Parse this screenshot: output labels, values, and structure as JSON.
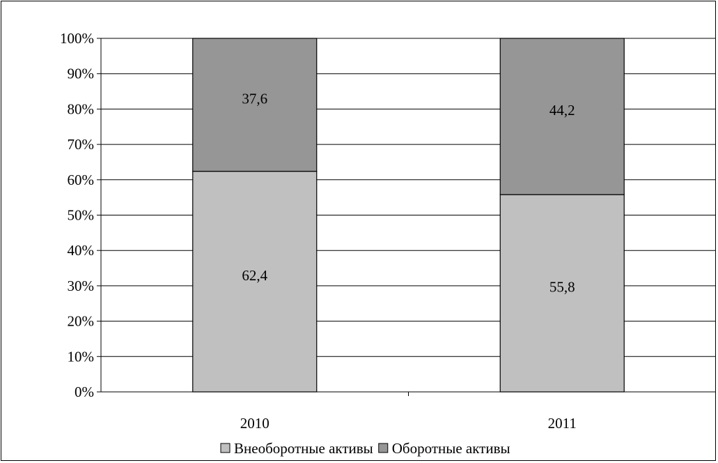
{
  "chart_data": {
    "type": "bar",
    "stacked": true,
    "percent": true,
    "categories": [
      "2010",
      "2011"
    ],
    "series": [
      {
        "name": "Внеоборотные активы",
        "values": [
          62.4,
          55.8
        ],
        "labels": [
          "62,4",
          "55,8"
        ],
        "color": "#c0c0c0"
      },
      {
        "name": "Оборотные активы",
        "values": [
          37.6,
          44.2
        ],
        "labels": [
          "37,6",
          "44,2"
        ],
        "color": "#969696"
      }
    ],
    "yticks": [
      "0%",
      "10%",
      "20%",
      "30%",
      "40%",
      "50%",
      "60%",
      "70%",
      "80%",
      "90%",
      "100%"
    ],
    "ylim": [
      0,
      100
    ],
    "grid": true,
    "legend_position": "bottom",
    "title": "",
    "xlabel": "",
    "ylabel": ""
  }
}
